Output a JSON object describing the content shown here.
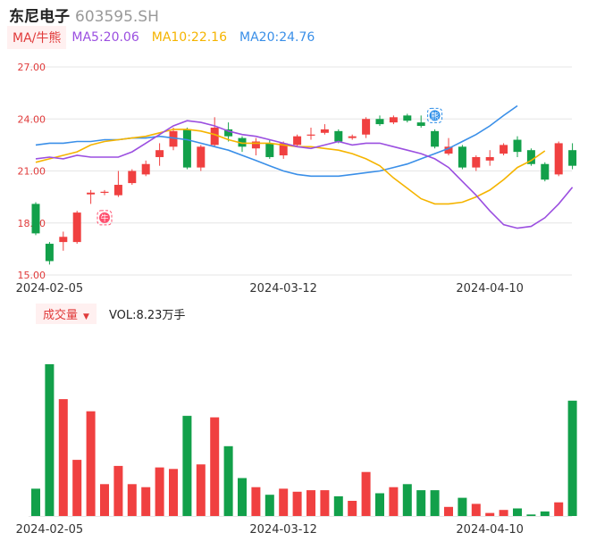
{
  "header": {
    "name": "东尼电子",
    "code": "603595.SH"
  },
  "ma_legend": {
    "type_label": "MA/牛熊",
    "ma5": "MA5:20.06",
    "ma10": "MA10:22.16",
    "ma20": "MA20:24.76"
  },
  "volume_legend": {
    "type_label": "成交量",
    "vol": "VOL:8.23万手"
  },
  "badges": {
    "bull": "牛",
    "bear": "熊"
  },
  "colors": {
    "up": "#f04040",
    "down": "#12a04a",
    "ma5": "#9b4fe0",
    "ma10": "#f5b400",
    "ma20": "#3a8fe8",
    "axis_text": "#e03a3a",
    "date_text": "#333333",
    "grid": "#e6e6e6"
  },
  "chart_data": {
    "type": "candlestick",
    "y_ticks": [
      "27.00",
      "24.00",
      "21.00",
      "18.00",
      "15.00"
    ],
    "ylim": [
      15.0,
      27.0
    ],
    "x_labels": [
      {
        "label": "2024-02-05",
        "index": 1
      },
      {
        "label": "2024-03-12",
        "index": 18
      },
      {
        "label": "2024-04-10",
        "index": 33
      }
    ],
    "candles": [
      {
        "o": 19.1,
        "c": 17.4,
        "h": 19.2,
        "l": 17.3
      },
      {
        "o": 16.8,
        "c": 15.8,
        "h": 16.9,
        "l": 15.6
      },
      {
        "o": 16.9,
        "c": 17.2,
        "h": 17.5,
        "l": 16.4
      },
      {
        "o": 16.9,
        "c": 18.6,
        "h": 18.7,
        "l": 16.8
      },
      {
        "o": 19.65,
        "c": 19.75,
        "h": 19.9,
        "l": 19.1
      },
      {
        "o": 19.8,
        "c": 19.8,
        "h": 19.9,
        "l": 19.6
      },
      {
        "o": 19.6,
        "c": 20.2,
        "h": 21.0,
        "l": 19.5
      },
      {
        "o": 20.3,
        "c": 21.0,
        "h": 21.1,
        "l": 20.2
      },
      {
        "o": 20.8,
        "c": 21.4,
        "h": 21.6,
        "l": 20.7
      },
      {
        "o": 21.8,
        "c": 22.2,
        "h": 22.6,
        "l": 21.3
      },
      {
        "o": 22.4,
        "c": 23.3,
        "h": 23.5,
        "l": 22.2
      },
      {
        "o": 23.4,
        "c": 21.2,
        "h": 23.5,
        "l": 21.1
      },
      {
        "o": 21.2,
        "c": 22.4,
        "h": 22.5,
        "l": 21.0
      },
      {
        "o": 22.5,
        "c": 23.5,
        "h": 24.1,
        "l": 22.4
      },
      {
        "o": 23.4,
        "c": 23.0,
        "h": 23.8,
        "l": 22.7
      },
      {
        "o": 22.9,
        "c": 22.4,
        "h": 23.0,
        "l": 22.1
      },
      {
        "o": 22.3,
        "c": 22.7,
        "h": 22.9,
        "l": 21.9
      },
      {
        "o": 22.6,
        "c": 21.8,
        "h": 22.8,
        "l": 21.7
      },
      {
        "o": 21.9,
        "c": 22.6,
        "h": 22.7,
        "l": 21.7
      },
      {
        "o": 22.5,
        "c": 23.0,
        "h": 23.1,
        "l": 22.4
      },
      {
        "o": 23.1,
        "c": 23.1,
        "h": 23.5,
        "l": 22.8
      },
      {
        "o": 23.2,
        "c": 23.4,
        "h": 23.7,
        "l": 23.1
      },
      {
        "o": 23.3,
        "c": 22.7,
        "h": 23.4,
        "l": 22.6
      },
      {
        "o": 22.9,
        "c": 23.0,
        "h": 23.1,
        "l": 22.8
      },
      {
        "o": 23.1,
        "c": 24.0,
        "h": 24.1,
        "l": 22.9
      },
      {
        "o": 24.0,
        "c": 23.7,
        "h": 24.2,
        "l": 23.6
      },
      {
        "o": 23.8,
        "c": 24.1,
        "h": 24.2,
        "l": 23.7
      },
      {
        "o": 24.2,
        "c": 23.9,
        "h": 24.3,
        "l": 23.8
      },
      {
        "o": 23.8,
        "c": 23.6,
        "h": 24.2,
        "l": 23.5
      },
      {
        "o": 23.3,
        "c": 22.4,
        "h": 23.4,
        "l": 22.3
      },
      {
        "o": 22.0,
        "c": 22.4,
        "h": 22.9,
        "l": 21.9
      },
      {
        "o": 22.4,
        "c": 21.2,
        "h": 22.5,
        "l": 21.1
      },
      {
        "o": 21.2,
        "c": 21.8,
        "h": 21.9,
        "l": 21.0
      },
      {
        "o": 21.6,
        "c": 21.8,
        "h": 22.2,
        "l": 21.3
      },
      {
        "o": 22.0,
        "c": 22.5,
        "h": 22.6,
        "l": 21.9
      },
      {
        "o": 22.8,
        "c": 22.1,
        "h": 23.0,
        "l": 21.8
      },
      {
        "o": 22.2,
        "c": 21.4,
        "h": 22.3,
        "l": 21.3
      },
      {
        "o": 21.4,
        "c": 20.5,
        "h": 21.5,
        "l": 20.4
      },
      {
        "o": 20.8,
        "c": 22.6,
        "h": 22.7,
        "l": 20.7
      },
      {
        "o": 22.2,
        "c": 21.3,
        "h": 22.6,
        "l": 21.1
      }
    ],
    "volume_relative": [
      0.18,
      1.0,
      0.77,
      0.37,
      0.69,
      0.21,
      0.33,
      0.21,
      0.19,
      0.32,
      0.31,
      0.66,
      0.34,
      0.65,
      0.46,
      0.25,
      0.19,
      0.14,
      0.18,
      0.16,
      0.17,
      0.17,
      0.13,
      0.1,
      0.29,
      0.15,
      0.19,
      0.21,
      0.17,
      0.17,
      0.06,
      0.12,
      0.08,
      0.02,
      0.04,
      0.05,
      0.01,
      0.03,
      0.09,
      0.76
    ],
    "ma5": [
      [
        0,
        21.7
      ],
      [
        1,
        21.8
      ],
      [
        2,
        21.7
      ],
      [
        3,
        21.9
      ],
      [
        4,
        21.8
      ],
      [
        5,
        21.8
      ],
      [
        6,
        21.8
      ],
      [
        7,
        22.1
      ],
      [
        8,
        22.6
      ],
      [
        9,
        23.1
      ],
      [
        10,
        23.6
      ],
      [
        11,
        23.9
      ],
      [
        12,
        23.8
      ],
      [
        13,
        23.6
      ],
      [
        14,
        23.3
      ],
      [
        15,
        23.1
      ],
      [
        16,
        23.0
      ],
      [
        17,
        22.8
      ],
      [
        18,
        22.6
      ],
      [
        19,
        22.4
      ],
      [
        20,
        22.3
      ],
      [
        21,
        22.5
      ],
      [
        22,
        22.7
      ],
      [
        23,
        22.5
      ],
      [
        24,
        22.6
      ],
      [
        25,
        22.6
      ],
      [
        26,
        22.4
      ],
      [
        27,
        22.2
      ],
      [
        28,
        22.0
      ],
      [
        29,
        21.7
      ],
      [
        30,
        21.2
      ],
      [
        31,
        20.4
      ],
      [
        32,
        19.6
      ],
      [
        33,
        18.7
      ],
      [
        34,
        17.9
      ],
      [
        35,
        17.7
      ],
      [
        36,
        17.8
      ],
      [
        37,
        18.3
      ],
      [
        38,
        19.1
      ],
      [
        39,
        20.06
      ]
    ],
    "ma10": [
      [
        0,
        21.5
      ],
      [
        1,
        21.7
      ],
      [
        2,
        21.9
      ],
      [
        3,
        22.1
      ],
      [
        4,
        22.5
      ],
      [
        5,
        22.7
      ],
      [
        6,
        22.8
      ],
      [
        7,
        22.9
      ],
      [
        8,
        23.0
      ],
      [
        9,
        23.2
      ],
      [
        10,
        23.4
      ],
      [
        11,
        23.4
      ],
      [
        12,
        23.3
      ],
      [
        13,
        23.1
      ],
      [
        14,
        22.8
      ],
      [
        15,
        22.6
      ],
      [
        16,
        22.6
      ],
      [
        17,
        22.6
      ],
      [
        18,
        22.5
      ],
      [
        19,
        22.4
      ],
      [
        20,
        22.4
      ],
      [
        21,
        22.3
      ],
      [
        22,
        22.2
      ],
      [
        23,
        22.0
      ],
      [
        24,
        21.7
      ],
      [
        25,
        21.3
      ],
      [
        26,
        20.6
      ],
      [
        27,
        20.0
      ],
      [
        28,
        19.4
      ],
      [
        29,
        19.1
      ],
      [
        30,
        19.1
      ],
      [
        31,
        19.2
      ],
      [
        32,
        19.5
      ],
      [
        33,
        19.9
      ],
      [
        34,
        20.5
      ],
      [
        35,
        21.2
      ],
      [
        36,
        21.6
      ],
      [
        37,
        22.16
      ]
    ],
    "ma20": [
      [
        0,
        22.5
      ],
      [
        1,
        22.6
      ],
      [
        2,
        22.6
      ],
      [
        3,
        22.7
      ],
      [
        4,
        22.7
      ],
      [
        5,
        22.8
      ],
      [
        6,
        22.8
      ],
      [
        7,
        22.9
      ],
      [
        8,
        22.9
      ],
      [
        9,
        23.0
      ],
      [
        10,
        22.9
      ],
      [
        11,
        22.8
      ],
      [
        12,
        22.6
      ],
      [
        13,
        22.4
      ],
      [
        14,
        22.2
      ],
      [
        15,
        21.9
      ],
      [
        16,
        21.6
      ],
      [
        17,
        21.3
      ],
      [
        18,
        21.0
      ],
      [
        19,
        20.8
      ],
      [
        20,
        20.7
      ],
      [
        21,
        20.7
      ],
      [
        22,
        20.7
      ],
      [
        23,
        20.8
      ],
      [
        24,
        20.9
      ],
      [
        25,
        21.0
      ],
      [
        26,
        21.2
      ],
      [
        27,
        21.4
      ],
      [
        28,
        21.7
      ],
      [
        29,
        22.0
      ],
      [
        30,
        22.3
      ],
      [
        31,
        22.7
      ],
      [
        32,
        23.1
      ],
      [
        33,
        23.6
      ],
      [
        34,
        24.2
      ],
      [
        35,
        24.76
      ]
    ]
  }
}
